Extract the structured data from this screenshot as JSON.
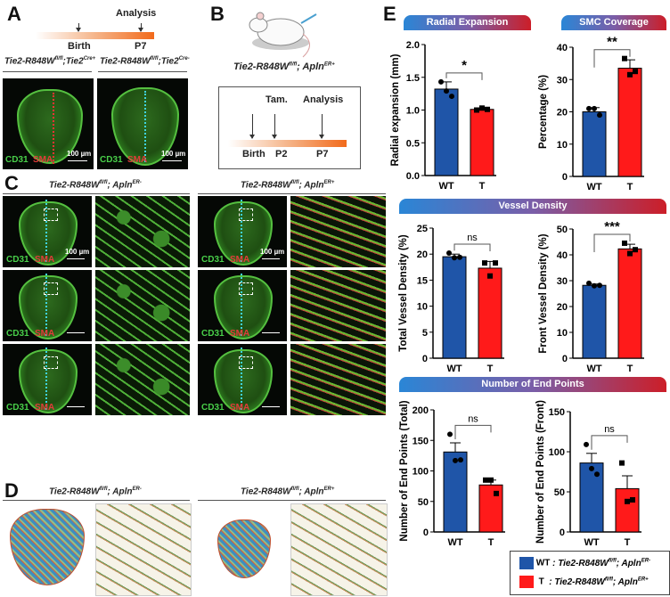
{
  "panels": {
    "A": "A",
    "B": "B",
    "C": "C",
    "D": "D",
    "E": "E"
  },
  "panelA": {
    "timeline": {
      "analysis": "Analysis",
      "birth": "Birth",
      "p7": "P7"
    },
    "genotypes": [
      {
        "base": "Tie2-R848W",
        "sup1": "fl/fl",
        "mid": ";Tie2",
        "sup2": "Cre+"
      },
      {
        "base": "Tie2-R848W",
        "sup1": "fl/fl",
        "mid": ";Tie2",
        "sup2": "Cre-"
      }
    ],
    "image_labels": {
      "cd31": "CD31",
      "sma": "SMA",
      "scale": "100 µm"
    }
  },
  "panelB": {
    "genotype": {
      "base": "Tie2-R848W",
      "sup1": "fl/fl",
      "mid": "; Apln",
      "sup2": "ER+"
    },
    "timeline": {
      "tam": "Tam.",
      "analysis": "Analysis",
      "birth": "Birth",
      "p2": "P2",
      "p7": "P7"
    }
  },
  "panelC": {
    "genotypes": [
      {
        "base": "Tie2-R848W",
        "sup1": "fl/fl",
        "mid": "; Apln",
        "sup2": "ER-"
      },
      {
        "base": "Tie2-R848W",
        "sup1": "fl/fl",
        "mid": "; Apln",
        "sup2": "ER+"
      }
    ],
    "image_labels": {
      "cd31": "CD31",
      "sma": "SMA",
      "scale": "100 µm"
    }
  },
  "panelD": {
    "genotypes": [
      {
        "base": "Tie2-R848W",
        "sup1": "fl/fl",
        "mid": "; Apln",
        "sup2": "ER-"
      },
      {
        "base": "Tie2-R848W",
        "sup1": "fl/fl",
        "mid": "; Apln",
        "sup2": "ER+"
      }
    ]
  },
  "panelE": {
    "headers": {
      "radial": "Radial Expansion",
      "smc": "SMC Coverage",
      "vd": "Vessel Density",
      "ep": "Number of End Points"
    },
    "legend": [
      {
        "key": "WT",
        "text": ": Tie2-R848W",
        "sup1": "fl/fl",
        "mid": "; Apln",
        "sup2": "ER-",
        "color": "#1f55a8"
      },
      {
        "key": "T",
        "text": ": Tie2-R848W",
        "sup1": "fl/fl",
        "mid": "; Apln",
        "sup2": "ER+",
        "color": "#ff1a1a"
      }
    ]
  },
  "colors": {
    "wt": "#1f55a8",
    "t": "#ff1a1a"
  },
  "chart_data": [
    {
      "type": "bar",
      "categories": [
        "WT",
        "T"
      ],
      "ylabel": "Radial expansion (mm)",
      "ylim": [
        0,
        2.0
      ],
      "yticks": [
        0.0,
        0.5,
        1.0,
        1.5,
        2.0
      ],
      "tickfmt": 1,
      "values": [
        1.32,
        1.01
      ],
      "sd": [
        0.11,
        0.02
      ],
      "points": [
        [
          1.43,
          1.29,
          1.21
        ],
        [
          1.0,
          1.03,
          1.01
        ]
      ],
      "sig": "*"
    },
    {
      "type": "bar",
      "categories": [
        "WT",
        "T"
      ],
      "ylabel": "Percentage (%)",
      "ylim": [
        0,
        40
      ],
      "yticks": [
        0,
        10,
        20,
        30,
        40
      ],
      "tickfmt": 0,
      "values": [
        20,
        33.5
      ],
      "sd": [
        1.3,
        2.6
      ],
      "points": [
        [
          21,
          21,
          19
        ],
        [
          36.5,
          31.5,
          32.5
        ]
      ],
      "sig": "**"
    },
    {
      "type": "bar",
      "categories": [
        "WT",
        "T"
      ],
      "ylabel": "Total Vessel Density (%)",
      "ylim": [
        0,
        25
      ],
      "yticks": [
        0,
        5,
        10,
        15,
        20,
        25
      ],
      "tickfmt": 0,
      "values": [
        19.5,
        17.3
      ],
      "sd": [
        0.5,
        1.3
      ],
      "points": [
        [
          20.2,
          19.3,
          19.4
        ],
        [
          18.3,
          15.8,
          18.3
        ]
      ],
      "sig": "ns"
    },
    {
      "type": "bar",
      "categories": [
        "WT",
        "T"
      ],
      "ylabel": "Front Vessel Density (%)",
      "ylim": [
        0,
        50
      ],
      "yticks": [
        0,
        10,
        20,
        30,
        40,
        50
      ],
      "tickfmt": 0,
      "values": [
        28.2,
        42.3
      ],
      "sd": [
        0.5,
        1.8
      ],
      "points": [
        [
          29,
          28,
          28.2
        ],
        [
          44.5,
          40.5,
          42
        ]
      ],
      "sig": "***"
    },
    {
      "type": "bar",
      "categories": [
        "WT",
        "T"
      ],
      "ylabel": "Number of End Points (Total)",
      "ylim": [
        0,
        200
      ],
      "yticks": [
        0,
        50,
        100,
        150,
        200
      ],
      "tickfmt": 0,
      "values": [
        131,
        77
      ],
      "sd": [
        15,
        8
      ],
      "points": [
        [
          160,
          117,
          118
        ],
        [
          85,
          85,
          63
        ]
      ],
      "sig": "ns"
    },
    {
      "type": "bar",
      "categories": [
        "WT",
        "T"
      ],
      "ylabel": "Number of End Points (Front)",
      "ylim": [
        0,
        150
      ],
      "yticks": [
        0,
        50,
        100,
        150
      ],
      "tickfmt": 0,
      "values": [
        86,
        54
      ],
      "sd": [
        12,
        16
      ],
      "points": [
        [
          109,
          79,
          72
        ],
        [
          86,
          38,
          40
        ]
      ],
      "sig": "ns"
    }
  ]
}
